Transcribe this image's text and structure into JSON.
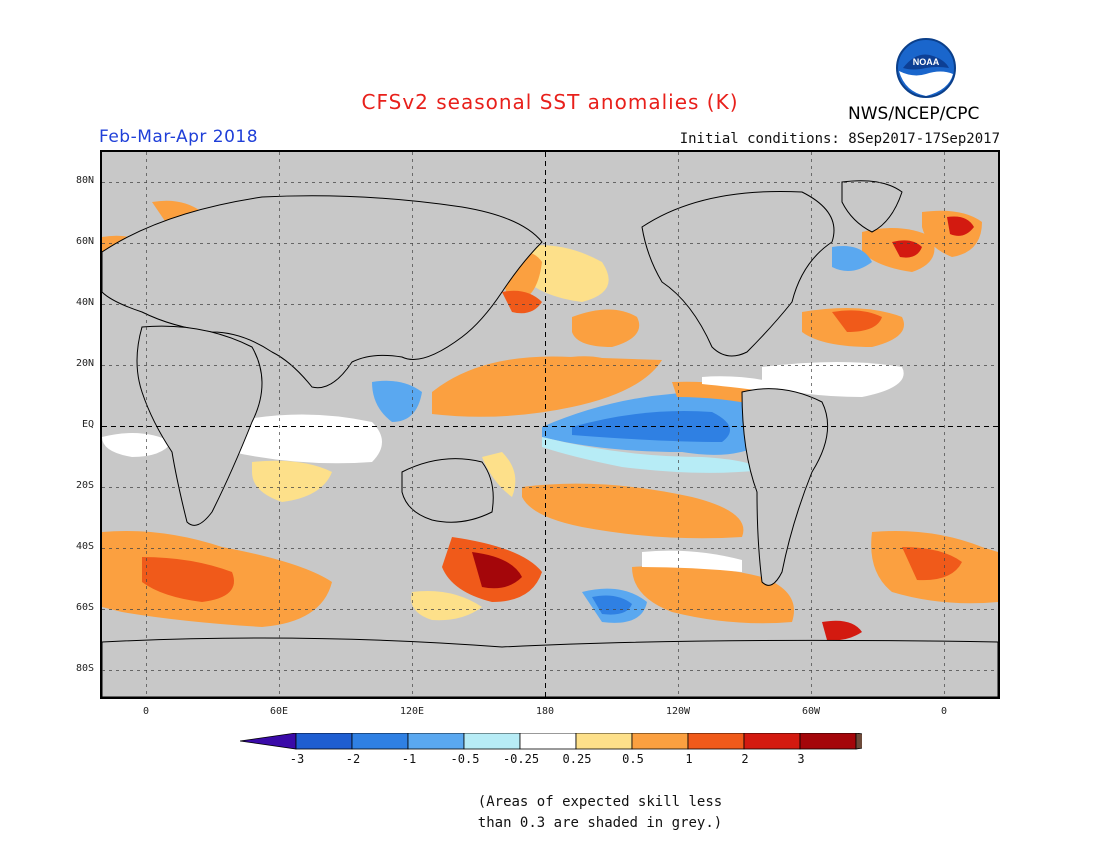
{
  "header": {
    "title": "CFSv2 seasonal SST anomalies (K)",
    "agency": "NWS/NCEP/CPC",
    "logo_text": "NOAA",
    "period": "Feb-Mar-Apr 2018",
    "initial_conditions": "Initial conditions: 8Sep2017-17Sep2017"
  },
  "map": {
    "lat_labels": [
      "80N",
      "60N",
      "40N",
      "20N",
      "EQ",
      "20S",
      "40S",
      "60S",
      "80S"
    ],
    "lon_labels": [
      "0",
      "60E",
      "120E",
      "180",
      "120W",
      "60W",
      "0"
    ],
    "land_color": "#c8c8c8",
    "grid": "dashed"
  },
  "colorbar": {
    "labels": [
      "-3",
      "-2",
      "-1",
      "-0.5",
      "-0.25",
      "0.25",
      "0.5",
      "1",
      "2",
      "3"
    ],
    "colors": [
      "#3a0aa8",
      "#1f5ed1",
      "#2f80e3",
      "#5aa8f0",
      "#b7ecf6",
      "#ffffff",
      "#fde08a",
      "#fba040",
      "#f05a1a",
      "#d31a10",
      "#a4060a",
      "#6d4a3a"
    ]
  },
  "footnote": {
    "line1": "(Areas of expected skill less",
    "line2": "than 0.3 are shaded in grey.)"
  }
}
